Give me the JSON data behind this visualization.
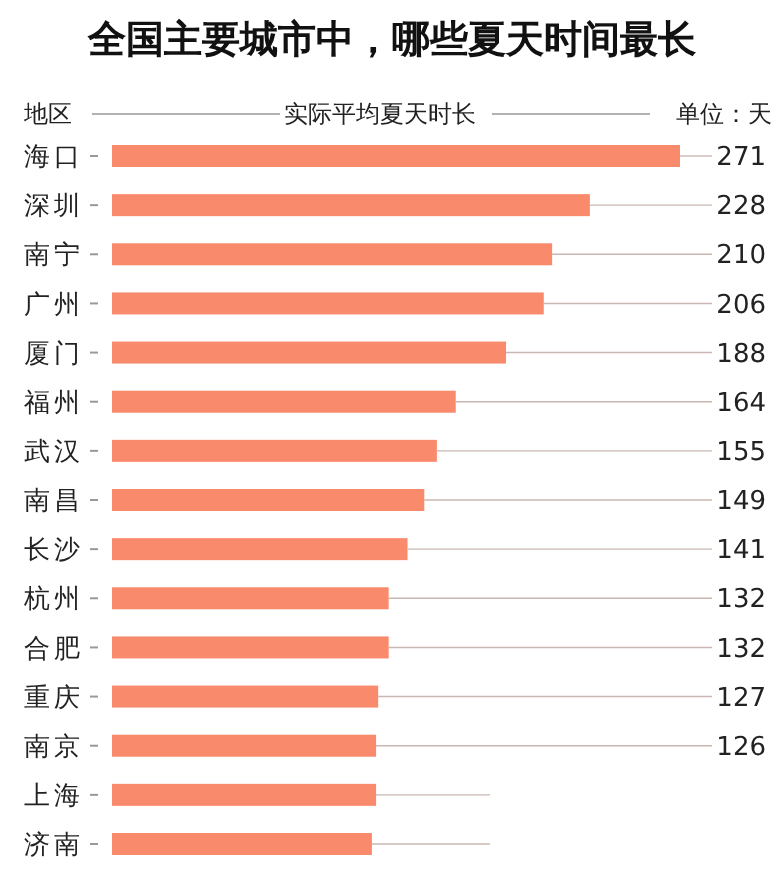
{
  "chart_data": {
    "type": "bar",
    "orientation": "horizontal",
    "title": "全国主要城市中，哪些夏天时间最长",
    "ylabel": "地区",
    "xlabel": "实际平均夏天时长",
    "annotations": [
      "单位：天"
    ],
    "categories": [
      "海口",
      "深圳",
      "南宁",
      "广州",
      "厦门",
      "福州",
      "武汉",
      "南昌",
      "长沙",
      "杭州",
      "合肥",
      "重庆",
      "南京",
      "上海",
      "济南"
    ],
    "values": [
      271,
      228,
      210,
      206,
      188,
      164,
      155,
      149,
      141,
      132,
      132,
      127,
      126,
      126,
      124
    ],
    "value_labels": [
      "271",
      "228",
      "210",
      "206",
      "188",
      "164",
      "155",
      "149",
      "141",
      "132",
      "132",
      "127",
      "126",
      null,
      null
    ],
    "color": "#fa8a6c"
  }
}
